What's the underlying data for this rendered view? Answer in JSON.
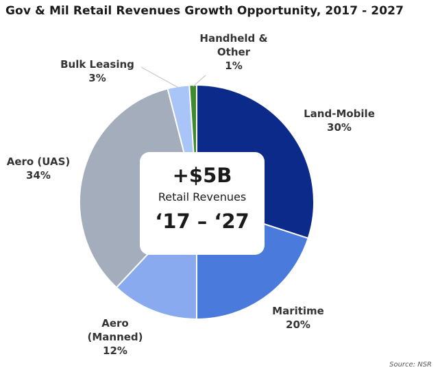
{
  "chart_data": {
    "type": "pie",
    "title": "Gov & Mil Retail Revenues Growth Opportunity, 2017 - 2027",
    "slices": [
      {
        "name": "Land-Mobile",
        "value": 30,
        "label": "30%",
        "color": "#0b2a8a"
      },
      {
        "name": "Maritime",
        "value": 20,
        "label": "20%",
        "color": "#4a7bdc"
      },
      {
        "name": "Aero (Manned)",
        "value": 12,
        "label": "12%",
        "color": "#8aaaf0"
      },
      {
        "name": "Aero (UAS)",
        "value": 34,
        "label": "34%",
        "color": "#a3adbb"
      },
      {
        "name": "Bulk Leasing",
        "value": 3,
        "label": "3%",
        "color": "#a9c5f8"
      },
      {
        "name": "Handheld & Other",
        "value": 1,
        "label": "1%",
        "color": "#3f8a2e"
      }
    ],
    "center": {
      "value": "+$5B",
      "caption": "Retail Revenues",
      "period": "‘17 – ‘27"
    },
    "source": "Source: NSR"
  }
}
